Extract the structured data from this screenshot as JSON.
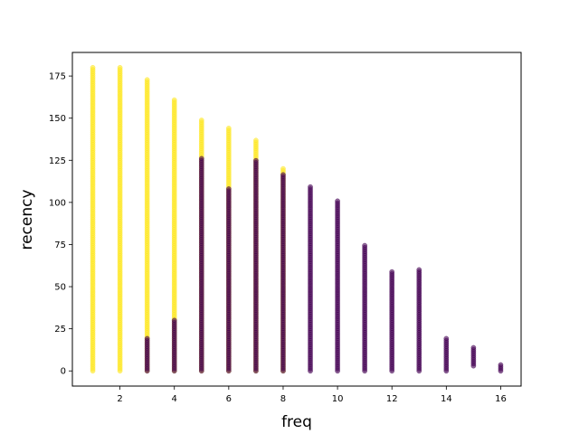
{
  "chart_data": {
    "type": "scatter",
    "title": "",
    "xlabel": "freq",
    "ylabel": "recency",
    "xlim": [
      0.25,
      16.75
    ],
    "ylim": [
      -9,
      189
    ],
    "x_ticks": [
      2,
      4,
      6,
      8,
      10,
      12,
      14,
      16
    ],
    "y_ticks": [
      0,
      25,
      50,
      75,
      100,
      125,
      150,
      175
    ],
    "grid": false,
    "legend": "none",
    "colors": {
      "yellow": "#fde725",
      "purple": "#440154"
    },
    "series": [
      {
        "color": "yellow",
        "segments": [
          {
            "x": 1,
            "y_range": [
              0,
              180
            ]
          },
          {
            "x": 2,
            "y_range": [
              0,
              180
            ]
          },
          {
            "x": 3,
            "y_range": [
              0,
              173
            ]
          },
          {
            "x": 4,
            "y_range": [
              0,
              161
            ]
          },
          {
            "x": 5,
            "y_range": [
              0,
              149
            ]
          },
          {
            "x": 6,
            "y_range": [
              0,
              145
            ]
          },
          {
            "x": 7,
            "y_range": [
              0,
              137
            ]
          },
          {
            "x": 8,
            "y_range": [
              0,
              120
            ]
          }
        ]
      },
      {
        "color": "purple",
        "segments": [
          {
            "x": 3,
            "y_range": [
              0,
              20
            ]
          },
          {
            "x": 4,
            "y_range": [
              0,
              30
            ]
          },
          {
            "x": 5,
            "y_range": [
              0,
              127
            ]
          },
          {
            "x": 6,
            "y_range": [
              0,
              109
            ]
          },
          {
            "x": 7,
            "y_range": [
              0,
              125
            ]
          },
          {
            "x": 8,
            "y_range": [
              0,
              117
            ]
          },
          {
            "x": 9,
            "y_range": [
              0,
              110
            ]
          },
          {
            "x": 10,
            "y_range": [
              0,
              101
            ]
          },
          {
            "x": 11,
            "y_range": [
              0,
              75
            ]
          },
          {
            "x": 12,
            "y_range": [
              0,
              59
            ]
          },
          {
            "x": 13,
            "y_range": [
              0,
              61
            ]
          },
          {
            "x": 14,
            "y_range": [
              0,
              20
            ]
          },
          {
            "x": 15,
            "y_range": [
              3,
              14
            ]
          },
          {
            "x": 16,
            "y_range": [
              0,
              4
            ]
          }
        ]
      }
    ]
  }
}
